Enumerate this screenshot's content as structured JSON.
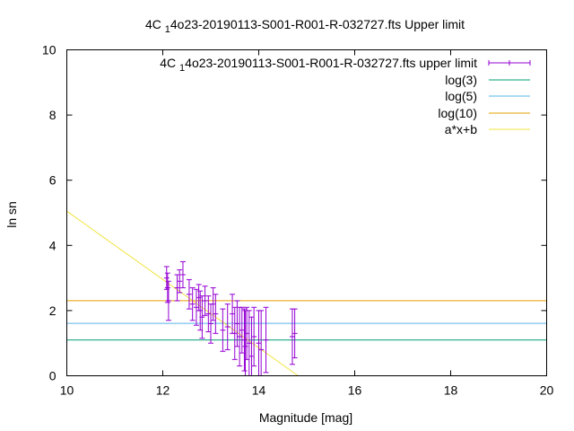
{
  "chart_data": {
    "type": "scatter",
    "title_main": "4C ",
    "title_sub": "1",
    "title_rest": "4o23-20190113-S001-R001-R-032727.fts Upper limit",
    "xlabel": "Magnitude [mag]",
    "ylabel": "ln sn",
    "xlim": [
      10,
      20
    ],
    "ylim": [
      0,
      10
    ],
    "xticks": [
      10,
      12,
      14,
      16,
      18,
      20
    ],
    "yticks": [
      0,
      2,
      4,
      6,
      8,
      10
    ],
    "grid": false,
    "legend_position": "top-right",
    "legend": [
      {
        "label_main": "4C ",
        "label_sub": "1",
        "label_rest": "4o23-20190113-S001-R001-R-032727.fts upper limit",
        "color": "#9400d3",
        "kind": "errorbar"
      },
      {
        "label": "log(3)",
        "color": "#009e73",
        "kind": "line"
      },
      {
        "label": "log(5)",
        "color": "#56b4e9",
        "kind": "line"
      },
      {
        "label": "log(10)",
        "color": "#e69f00",
        "kind": "line"
      },
      {
        "label": "a*x+b",
        "color": "#f0e442",
        "kind": "line"
      }
    ],
    "hlines": [
      {
        "name": "log(3)",
        "y": 1.0986,
        "color": "#009e73"
      },
      {
        "name": "log(5)",
        "y": 1.6094,
        "color": "#56b4e9"
      },
      {
        "name": "log(10)",
        "y": 2.3026,
        "color": "#e69f00"
      }
    ],
    "fit_line": {
      "name": "a*x+b",
      "x": [
        10,
        14.82
      ],
      "y": [
        5.05,
        0
      ],
      "color": "#f0e442"
    },
    "series": [
      {
        "name": "upper limit",
        "color": "#9400d3",
        "points": [
          {
            "x": 12.08,
            "y": 3.0,
            "err": 0.35
          },
          {
            "x": 12.1,
            "y": 2.7,
            "err": 0.45
          },
          {
            "x": 12.12,
            "y": 2.3,
            "err": 0.6
          },
          {
            "x": 12.3,
            "y": 2.7,
            "err": 0.4
          },
          {
            "x": 12.35,
            "y": 2.9,
            "err": 0.35
          },
          {
            "x": 12.42,
            "y": 3.1,
            "err": 0.4
          },
          {
            "x": 12.55,
            "y": 2.5,
            "err": 0.45
          },
          {
            "x": 12.62,
            "y": 2.2,
            "err": 0.5
          },
          {
            "x": 12.7,
            "y": 2.1,
            "err": 0.55
          },
          {
            "x": 12.75,
            "y": 2.4,
            "err": 0.4
          },
          {
            "x": 12.78,
            "y": 2.0,
            "err": 0.6
          },
          {
            "x": 12.82,
            "y": 1.8,
            "err": 0.65
          },
          {
            "x": 12.88,
            "y": 2.3,
            "err": 0.45
          },
          {
            "x": 12.95,
            "y": 1.9,
            "err": 0.55
          },
          {
            "x": 13.0,
            "y": 1.6,
            "err": 0.6
          },
          {
            "x": 13.05,
            "y": 2.2,
            "err": 0.5
          },
          {
            "x": 13.1,
            "y": 1.9,
            "err": 0.6
          },
          {
            "x": 13.25,
            "y": 1.4,
            "err": 0.65
          },
          {
            "x": 13.35,
            "y": 1.5,
            "err": 0.7
          },
          {
            "x": 13.45,
            "y": 1.9,
            "err": 0.6
          },
          {
            "x": 13.5,
            "y": 1.3,
            "err": 0.8
          },
          {
            "x": 13.55,
            "y": 1.6,
            "err": 0.7
          },
          {
            "x": 13.6,
            "y": 1.2,
            "err": 0.9
          },
          {
            "x": 13.65,
            "y": 1.4,
            "err": 0.7
          },
          {
            "x": 13.7,
            "y": 1.1,
            "err": 0.95
          },
          {
            "x": 13.72,
            "y": 0.9,
            "err": 1.1
          },
          {
            "x": 13.75,
            "y": 1.3,
            "err": 0.8
          },
          {
            "x": 13.8,
            "y": 1.0,
            "err": 1.0
          },
          {
            "x": 13.85,
            "y": 0.6,
            "err": 1.2
          },
          {
            "x": 13.9,
            "y": 1.2,
            "err": 0.9
          },
          {
            "x": 14.0,
            "y": 1.0,
            "err": 1.0
          },
          {
            "x": 14.05,
            "y": 0.8,
            "err": 1.2
          },
          {
            "x": 14.15,
            "y": 1.1,
            "err": 1.0
          },
          {
            "x": 14.7,
            "y": 1.2,
            "err": 0.85
          },
          {
            "x": 14.75,
            "y": 1.3,
            "err": 0.75
          }
        ]
      }
    ]
  }
}
